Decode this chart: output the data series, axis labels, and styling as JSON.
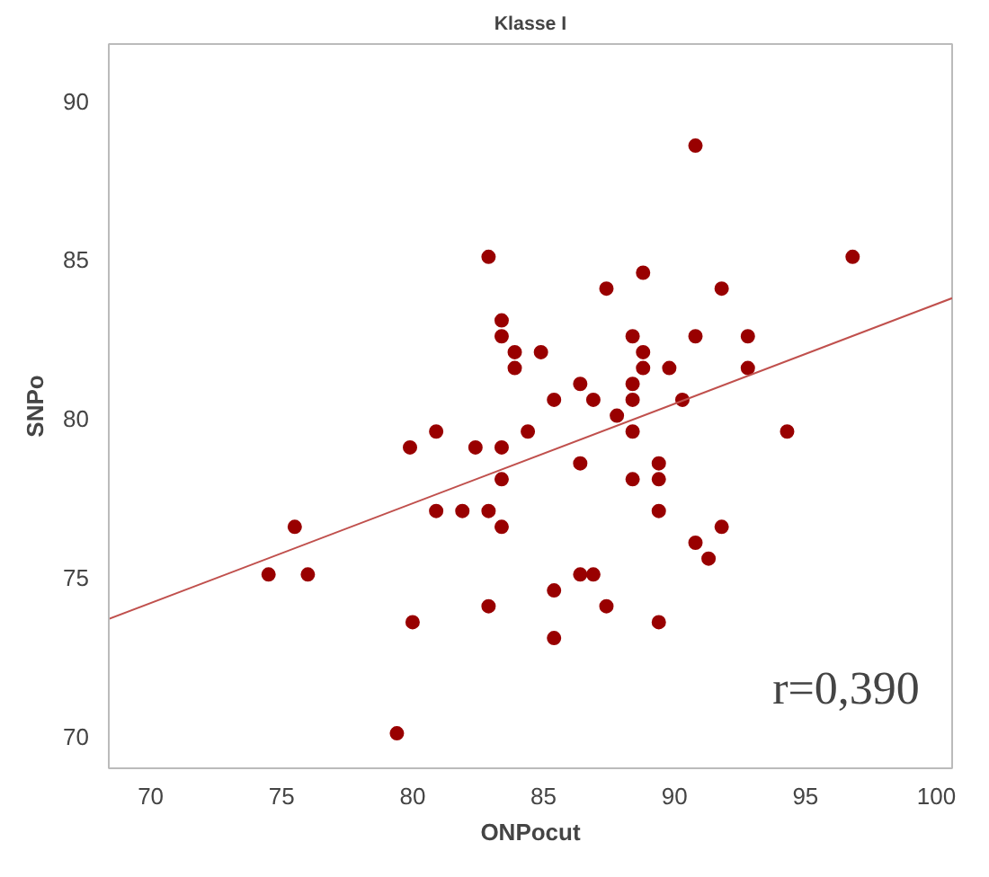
{
  "chart_data": {
    "type": "scatter",
    "title": "Klasse I",
    "xlabel": "ONPocut",
    "ylabel": "SNPo",
    "xlim": [
      68.4,
      100.6
    ],
    "ylim": [
      69.0,
      91.8
    ],
    "xticks": [
      70,
      75,
      80,
      85,
      90,
      95,
      100
    ],
    "yticks": [
      70,
      75,
      80,
      85,
      90
    ],
    "grid": false,
    "annotations": [
      "r=0,390"
    ],
    "series": [
      {
        "marker": "circle",
        "color": "#990000",
        "x": [
          74.5,
          75.5,
          76.0,
          79.4,
          79.9,
          80.0,
          80.9,
          80.9,
          81.9,
          82.4,
          82.9,
          82.9,
          82.9,
          83.4,
          83.4,
          83.4,
          83.4,
          83.4,
          83.9,
          83.9,
          84.4,
          84.9,
          85.4,
          85.4,
          85.4,
          86.4,
          86.4,
          86.4,
          86.9,
          86.9,
          87.4,
          87.4,
          87.8,
          88.4,
          88.4,
          88.4,
          88.4,
          88.4,
          88.8,
          88.8,
          88.8,
          89.4,
          89.4,
          89.4,
          89.4,
          89.8,
          90.3,
          90.8,
          90.8,
          90.8,
          91.3,
          91.8,
          91.8,
          92.8,
          92.8,
          94.3,
          96.8
        ],
        "values": [
          75.1,
          76.6,
          75.1,
          70.1,
          79.1,
          73.6,
          79.6,
          77.1,
          77.1,
          79.1,
          77.1,
          74.1,
          85.1,
          83.1,
          82.6,
          79.1,
          78.1,
          76.6,
          82.1,
          81.6,
          79.6,
          82.1,
          80.6,
          74.6,
          73.1,
          81.1,
          78.6,
          75.1,
          80.6,
          75.1,
          84.1,
          74.1,
          80.1,
          82.6,
          81.1,
          80.6,
          79.6,
          78.1,
          84.6,
          82.1,
          81.6,
          78.6,
          78.1,
          77.1,
          73.6,
          81.6,
          80.6,
          88.6,
          82.6,
          76.1,
          75.6,
          84.1,
          76.6,
          82.6,
          81.6,
          79.6,
          85.1
        ]
      },
      {
        "type": "line",
        "marker": "none",
        "color": "#c0504d",
        "x": [
          68.4,
          100.6
        ],
        "values": [
          73.7,
          83.8
        ]
      }
    ]
  }
}
